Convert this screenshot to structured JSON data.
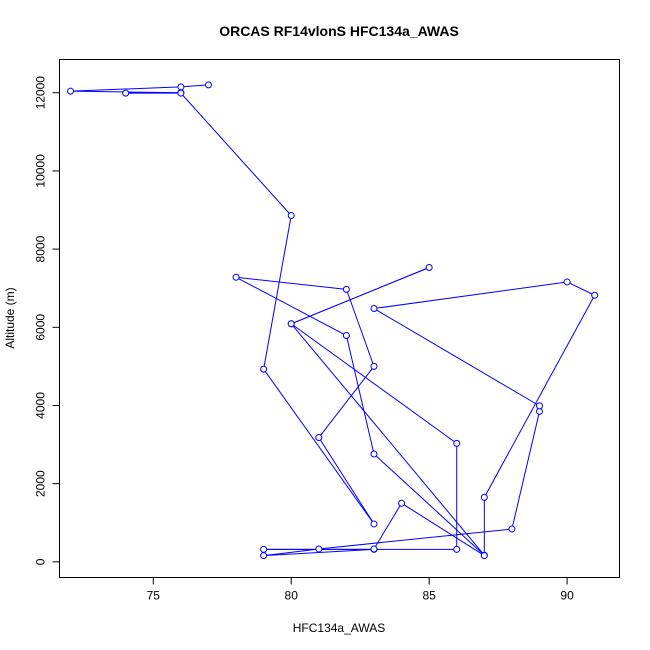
{
  "chart_data": {
    "type": "line",
    "title": "ORCAS RF14vlonS HFC134a_AWAS",
    "xlabel": "HFC134a_AWAS",
    "ylabel": "Altitude (m)",
    "xlim": [
      71.6,
      91.9
    ],
    "ylim": [
      -400,
      12850
    ],
    "xticks": [
      75,
      80,
      85,
      90
    ],
    "yticks": [
      0,
      2000,
      4000,
      6000,
      8000,
      10000,
      12000
    ],
    "grid": false,
    "legend": "none",
    "series_color": "#0000ff",
    "points": [
      {
        "x": 77,
        "y": 12200
      },
      {
        "x": 76,
        "y": 12150
      },
      {
        "x": 72,
        "y": 12040
      },
      {
        "x": 76,
        "y": 12000
      },
      {
        "x": 74,
        "y": 11990
      },
      {
        "x": 76,
        "y": 11990
      },
      {
        "x": 80,
        "y": 8860
      },
      {
        "x": 79,
        "y": 4930
      },
      {
        "x": 83,
        "y": 970
      },
      {
        "x": 81,
        "y": 3180
      },
      {
        "x": 83,
        "y": 5000
      },
      {
        "x": 82,
        "y": 6970
      },
      {
        "x": 78,
        "y": 7280
      },
      {
        "x": 82,
        "y": 5790
      },
      {
        "x": 83,
        "y": 2760
      },
      {
        "x": 87,
        "y": 170
      },
      {
        "x": 80,
        "y": 6090
      },
      {
        "x": 85,
        "y": 7530
      },
      {
        "x": 80,
        "y": 6090
      },
      {
        "x": 86,
        "y": 3030
      },
      {
        "x": 86,
        "y": 320
      },
      {
        "x": 79,
        "y": 320
      },
      {
        "x": 83,
        "y": 320
      },
      {
        "x": 79,
        "y": 160
      },
      {
        "x": 81,
        "y": 330
      },
      {
        "x": 88,
        "y": 840
      },
      {
        "x": 89,
        "y": 3850
      },
      {
        "x": 89,
        "y": 3990
      },
      {
        "x": 83,
        "y": 6480
      },
      {
        "x": 90,
        "y": 7160
      },
      {
        "x": 91,
        "y": 6820
      },
      {
        "x": 87,
        "y": 1650
      },
      {
        "x": 87,
        "y": 160
      },
      {
        "x": 84,
        "y": 1500
      },
      {
        "x": 83,
        "y": 330
      }
    ]
  }
}
